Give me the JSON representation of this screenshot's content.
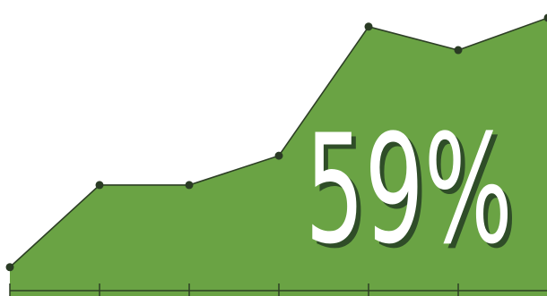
{
  "chart_data": {
    "type": "area",
    "x": [
      1,
      2,
      3,
      4,
      5,
      6,
      7
    ],
    "values": [
      0.4,
      1.8,
      1.8,
      2.3,
      4.5,
      4.1,
      4.65
    ],
    "ylim": [
      0,
      5
    ],
    "grid": false,
    "colors": {
      "fill": "#6aa344",
      "line": "#2d3f25",
      "point": "#2a3b24",
      "axis": "#2d3f25",
      "label": "#ffffff",
      "label_shadow": "#2f4d28"
    },
    "annotation": "59%"
  }
}
